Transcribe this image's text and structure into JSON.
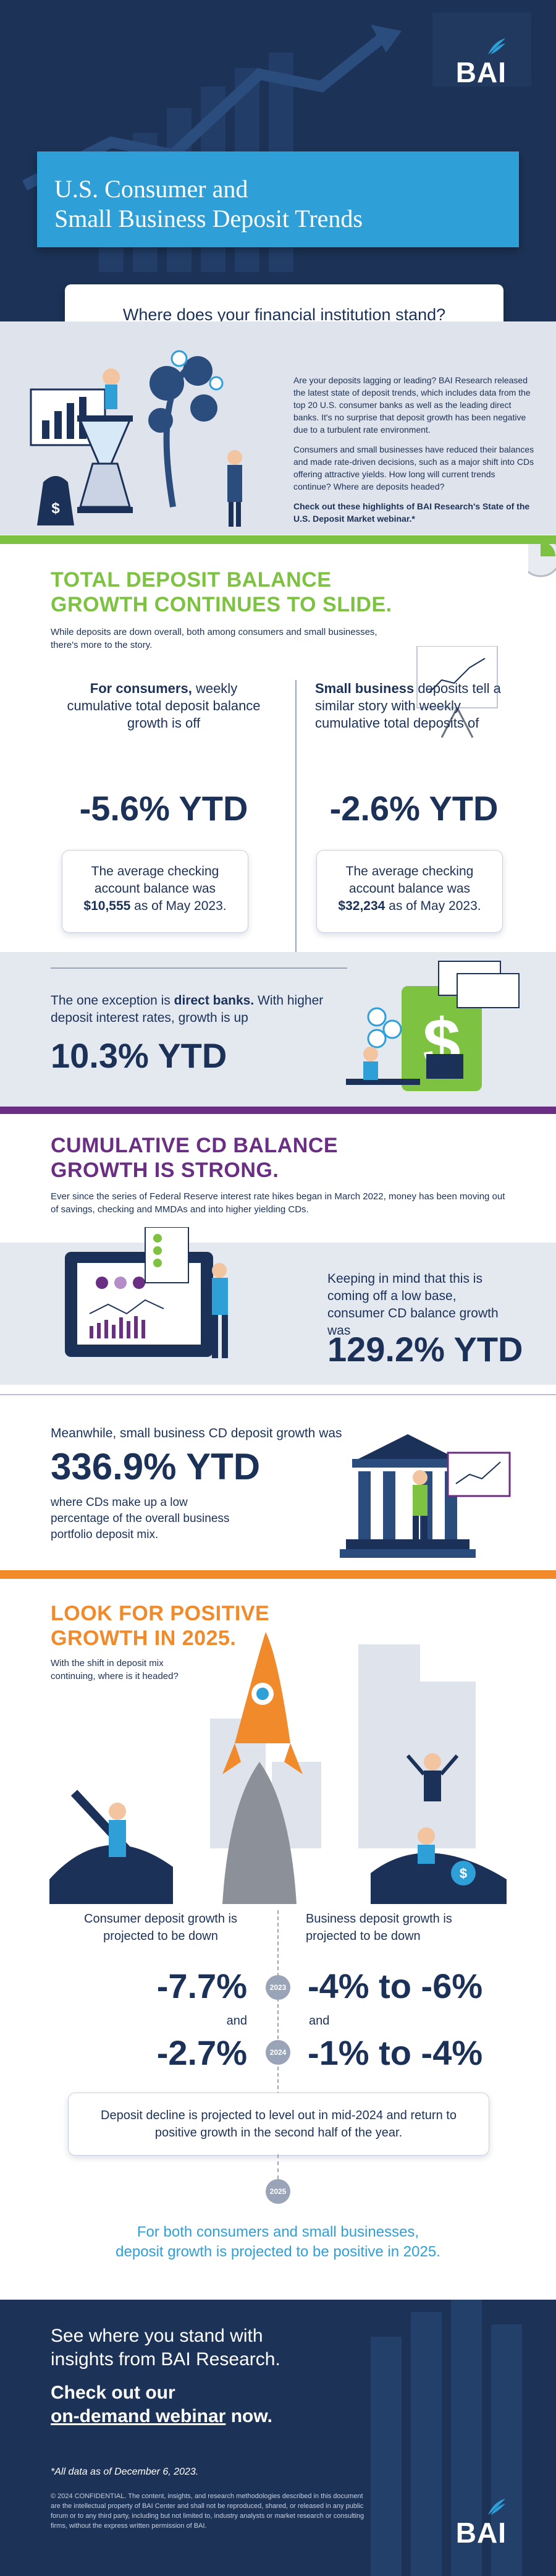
{
  "header": {
    "logo": "BAI",
    "title_line1": "U.S. Consumer and",
    "title_line2": "Small Business Deposit Trends",
    "question": "Where does your financial institution stand?"
  },
  "intro": {
    "p1": "Are your deposits lagging or leading? BAI Research released the latest state of deposit trends, which includes data from the top 20 U.S. consumer banks as well as the leading direct banks. It's no surprise that deposit growth has been negative due to a turbulent rate environment.",
    "p2": "Consumers and small businesses have reduced their balances and made rate-driven decisions, such as a major shift into CDs offering attractive yields. How long will current trends continue? Where are deposits headed?",
    "p3": "Check out these highlights of BAI Research's State of the U.S. Deposit Market webinar.*"
  },
  "total": {
    "heading1": "TOTAL DEPOSIT BALANCE",
    "heading2": "GROWTH CONTINUES TO SLIDE.",
    "sub": "While deposits are down overall, both among consumers and small businesses, there's more to the story.",
    "consumer_bold": "For consumers,",
    "consumer_text": "weekly cumulative total deposit balance growth is off",
    "consumer_value": "-5.6% YTD",
    "consumer_card1": "The average checking account balance was",
    "consumer_card_amount": "$10,555",
    "consumer_card2": "as of May 2023.",
    "sb_bold": "Small business",
    "sb_text": "deposits tell a similar story with weekly cumulative total deposits of",
    "sb_value": "-2.6% YTD",
    "sb_card1": "The average checking account balance was",
    "sb_card_amount": "$32,234",
    "sb_card2": "as of May 2023.",
    "direct_text1": "The one exception is",
    "direct_bold": "direct banks.",
    "direct_text2": "With higher deposit interest rates, growth is up",
    "direct_value": "10.3% YTD"
  },
  "cd": {
    "heading1": "CUMULATIVE CD BALANCE",
    "heading2": "GROWTH IS STRONG.",
    "sub": "Ever since the series of Federal Reserve interest rate hikes began in March 2022, money has been moving out of savings, checking and MMDAs and into higher yielding CDs.",
    "consumer_text": "Keeping in mind that this is coming off a low base, consumer CD balance growth was",
    "consumer_value": "129.2% YTD",
    "sb_text": "Meanwhile, small business CD deposit growth was",
    "sb_value": "336.9% YTD",
    "sb_note": "where CDs make up a low percentage of the overall business portfolio deposit mix."
  },
  "future": {
    "heading1": "LOOK FOR POSITIVE",
    "heading2": "GROWTH IN 2025.",
    "sub": "With the shift in deposit mix continuing, where is it headed?",
    "consumer_label": "Consumer deposit growth is projected to be down",
    "business_label": "Business deposit growth is projected to be down",
    "y2023": "2023",
    "y2024": "2024",
    "y2025": "2025",
    "and": "and",
    "c2023": "-7.7%",
    "c2024": "-2.7%",
    "b2023": "-4% to -6%",
    "b2024": "-1% to -4%",
    "card": "Deposit decline is projected to level out in mid-2024 and return to positive growth in the second half of the year.",
    "final1": "For both consumers and small businesses,",
    "final2": "deposit growth is projected to be positive in 2025."
  },
  "footer": {
    "cta1": "See where you stand with",
    "cta2": "insights from BAI Research.",
    "cta3": "Check out our",
    "cta_link": "on-demand webinar",
    "cta4": "now.",
    "note": "*All data as of December 6, 2023.",
    "legal": "© 2024 CONFIDENTIAL. The content, insights, and research methodologies described in this document are the intellectual property of BAI Center and shall not be reproduced, shared, or released in any public forum or to any third party, including but not limited to, industry analysts or market research or consulting firms, without the express written permission of BAI.",
    "logo": "BAI"
  },
  "colors": {
    "navy": "#1b3157",
    "green": "#7dc241",
    "purple": "#6a2e83",
    "orange": "#f08a2b",
    "light_blue": "#2f9fd8"
  }
}
